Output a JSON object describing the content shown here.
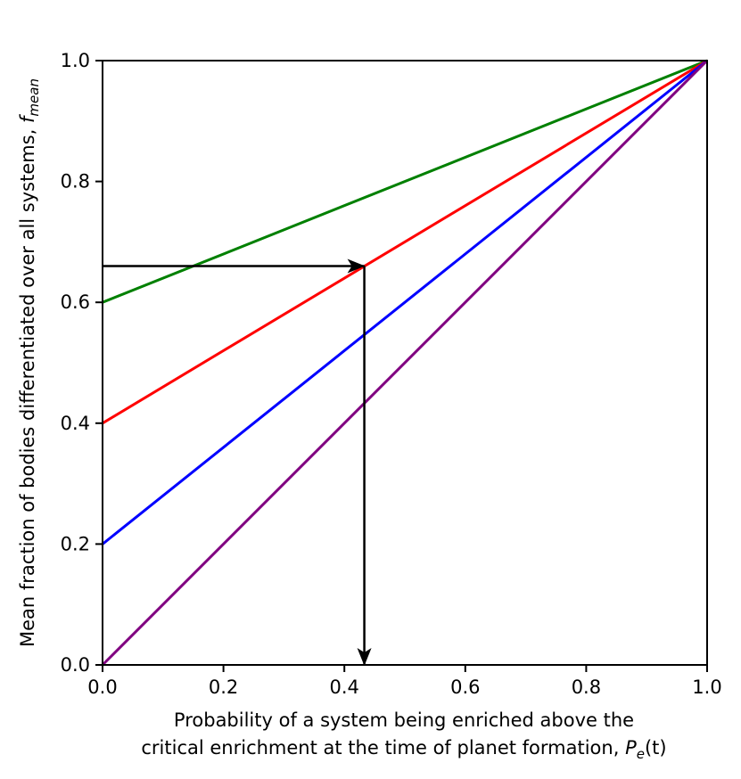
{
  "chart_data": {
    "type": "line",
    "title": "",
    "xlabel_line1": "Probability of a system being enriched above the",
    "xlabel_line2": "critical enrichment at the time of planet formation, ",
    "xlabel_symbol": "P",
    "xlabel_subscript": "e",
    "xlabel_suffix": "(t)",
    "ylabel_text": "Mean fraction of bodies differentiated over all systems, ",
    "ylabel_symbol": "f",
    "ylabel_subscript": "mean",
    "xlim": [
      0.0,
      1.0
    ],
    "ylim": [
      0.0,
      1.0
    ],
    "xticks": [
      0.0,
      0.2,
      0.4,
      0.6,
      0.8,
      1.0
    ],
    "xtick_labels": [
      "0.0",
      "0.2",
      "0.4",
      "0.6",
      "0.8",
      "1.0"
    ],
    "yticks": [
      0.0,
      0.2,
      0.4,
      0.6,
      0.8,
      1.0
    ],
    "ytick_labels": [
      "0.0",
      "0.2",
      "0.4",
      "0.6",
      "0.8",
      "1.0"
    ],
    "grid": false,
    "series": [
      {
        "name": "intercept 0.6",
        "color": "#008000",
        "x": [
          0.0,
          1.0
        ],
        "y": [
          0.6,
          1.0
        ]
      },
      {
        "name": "intercept 0.4",
        "color": "#ff0000",
        "x": [
          0.0,
          1.0
        ],
        "y": [
          0.4,
          1.0
        ]
      },
      {
        "name": "intercept 0.2",
        "color": "#0000ff",
        "x": [
          0.0,
          1.0
        ],
        "y": [
          0.2,
          1.0
        ]
      },
      {
        "name": "intercept 0.0",
        "color": "#800080",
        "x": [
          0.0,
          1.0
        ],
        "y": [
          0.0,
          1.0
        ]
      }
    ],
    "annotation_arrows": [
      {
        "name": "horizontal-arrow",
        "from": [
          0.0,
          0.66
        ],
        "to": [
          0.433,
          0.66
        ],
        "color": "#000000"
      },
      {
        "name": "vertical-arrow",
        "from": [
          0.433,
          0.66
        ],
        "to": [
          0.433,
          0.0
        ],
        "color": "#000000"
      }
    ]
  }
}
